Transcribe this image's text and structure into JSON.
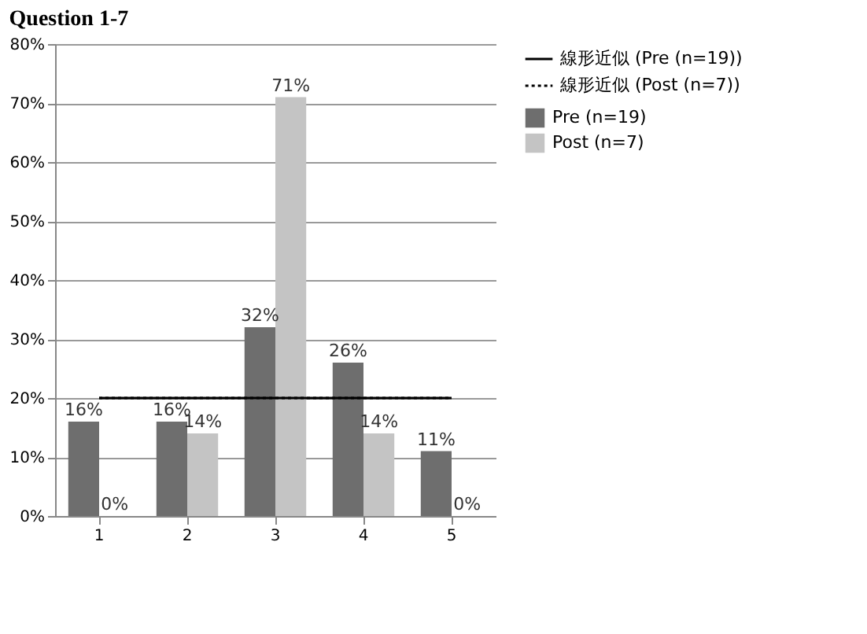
{
  "chart_data": {
    "type": "bar",
    "title": "Question 1-7",
    "categories": [
      "1",
      "2",
      "3",
      "4",
      "5"
    ],
    "series": [
      {
        "name": "Pre (n=19)",
        "color": "#6e6e6e",
        "values": [
          16,
          16,
          32,
          26,
          11
        ],
        "value_labels": [
          "16%",
          "16%",
          "32%",
          "26%",
          "11%"
        ]
      },
      {
        "name": "Post (n=7)",
        "color": "#c4c4c4",
        "values": [
          0,
          14,
          71,
          14,
          0
        ],
        "value_labels": [
          "0%",
          "14%",
          "71%",
          "14%",
          "0%"
        ]
      },
      {
        "name": "線形近似 (Pre (n=19))",
        "type": "line",
        "line_style": "solid",
        "color": "#000000",
        "values": [
          20,
          20,
          20,
          20,
          20
        ]
      },
      {
        "name": "線形近似 (Post (n=7))",
        "type": "line",
        "line_style": "dotted",
        "color": "#000000",
        "values": [
          20,
          20,
          20,
          20,
          20
        ]
      }
    ],
    "ylim": [
      0,
      80
    ],
    "yticks": [
      {
        "value": 0,
        "label": "0%"
      },
      {
        "value": 10,
        "label": "10%"
      },
      {
        "value": 20,
        "label": "20%"
      },
      {
        "value": 30,
        "label": "30%"
      },
      {
        "value": 40,
        "label": "40%"
      },
      {
        "value": 50,
        "label": "50%"
      },
      {
        "value": 60,
        "label": "60%"
      },
      {
        "value": 70,
        "label": "70%"
      },
      {
        "value": 80,
        "label": "80%"
      }
    ],
    "grid": "y",
    "legend": "right"
  }
}
